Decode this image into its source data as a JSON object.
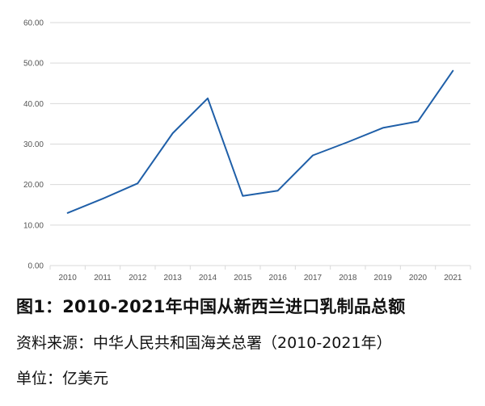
{
  "chart_data": {
    "type": "line",
    "x": [
      "2010",
      "2011",
      "2012",
      "2013",
      "2014",
      "2015",
      "2016",
      "2017",
      "2018",
      "2019",
      "2020",
      "2021"
    ],
    "series": [
      {
        "values": [
          13.0,
          16.5,
          20.3,
          32.7,
          41.3,
          17.2,
          18.5,
          27.2,
          30.5,
          34.0,
          35.6,
          48.1
        ]
      }
    ],
    "yticks": [
      "0.00",
      "10.00",
      "20.00",
      "30.00",
      "40.00",
      "50.00",
      "60.00"
    ],
    "ylim": [
      0,
      60
    ],
    "grid": true,
    "line_color": "#1f5fa8",
    "grid_color": "#d9d9d9"
  },
  "caption": {
    "title": "图1：2010-2021年中国从新西兰进口乳制品总额",
    "source": "资料来源：中华人民共和国海关总署（2010-2021年）",
    "unit": "单位：亿美元"
  }
}
